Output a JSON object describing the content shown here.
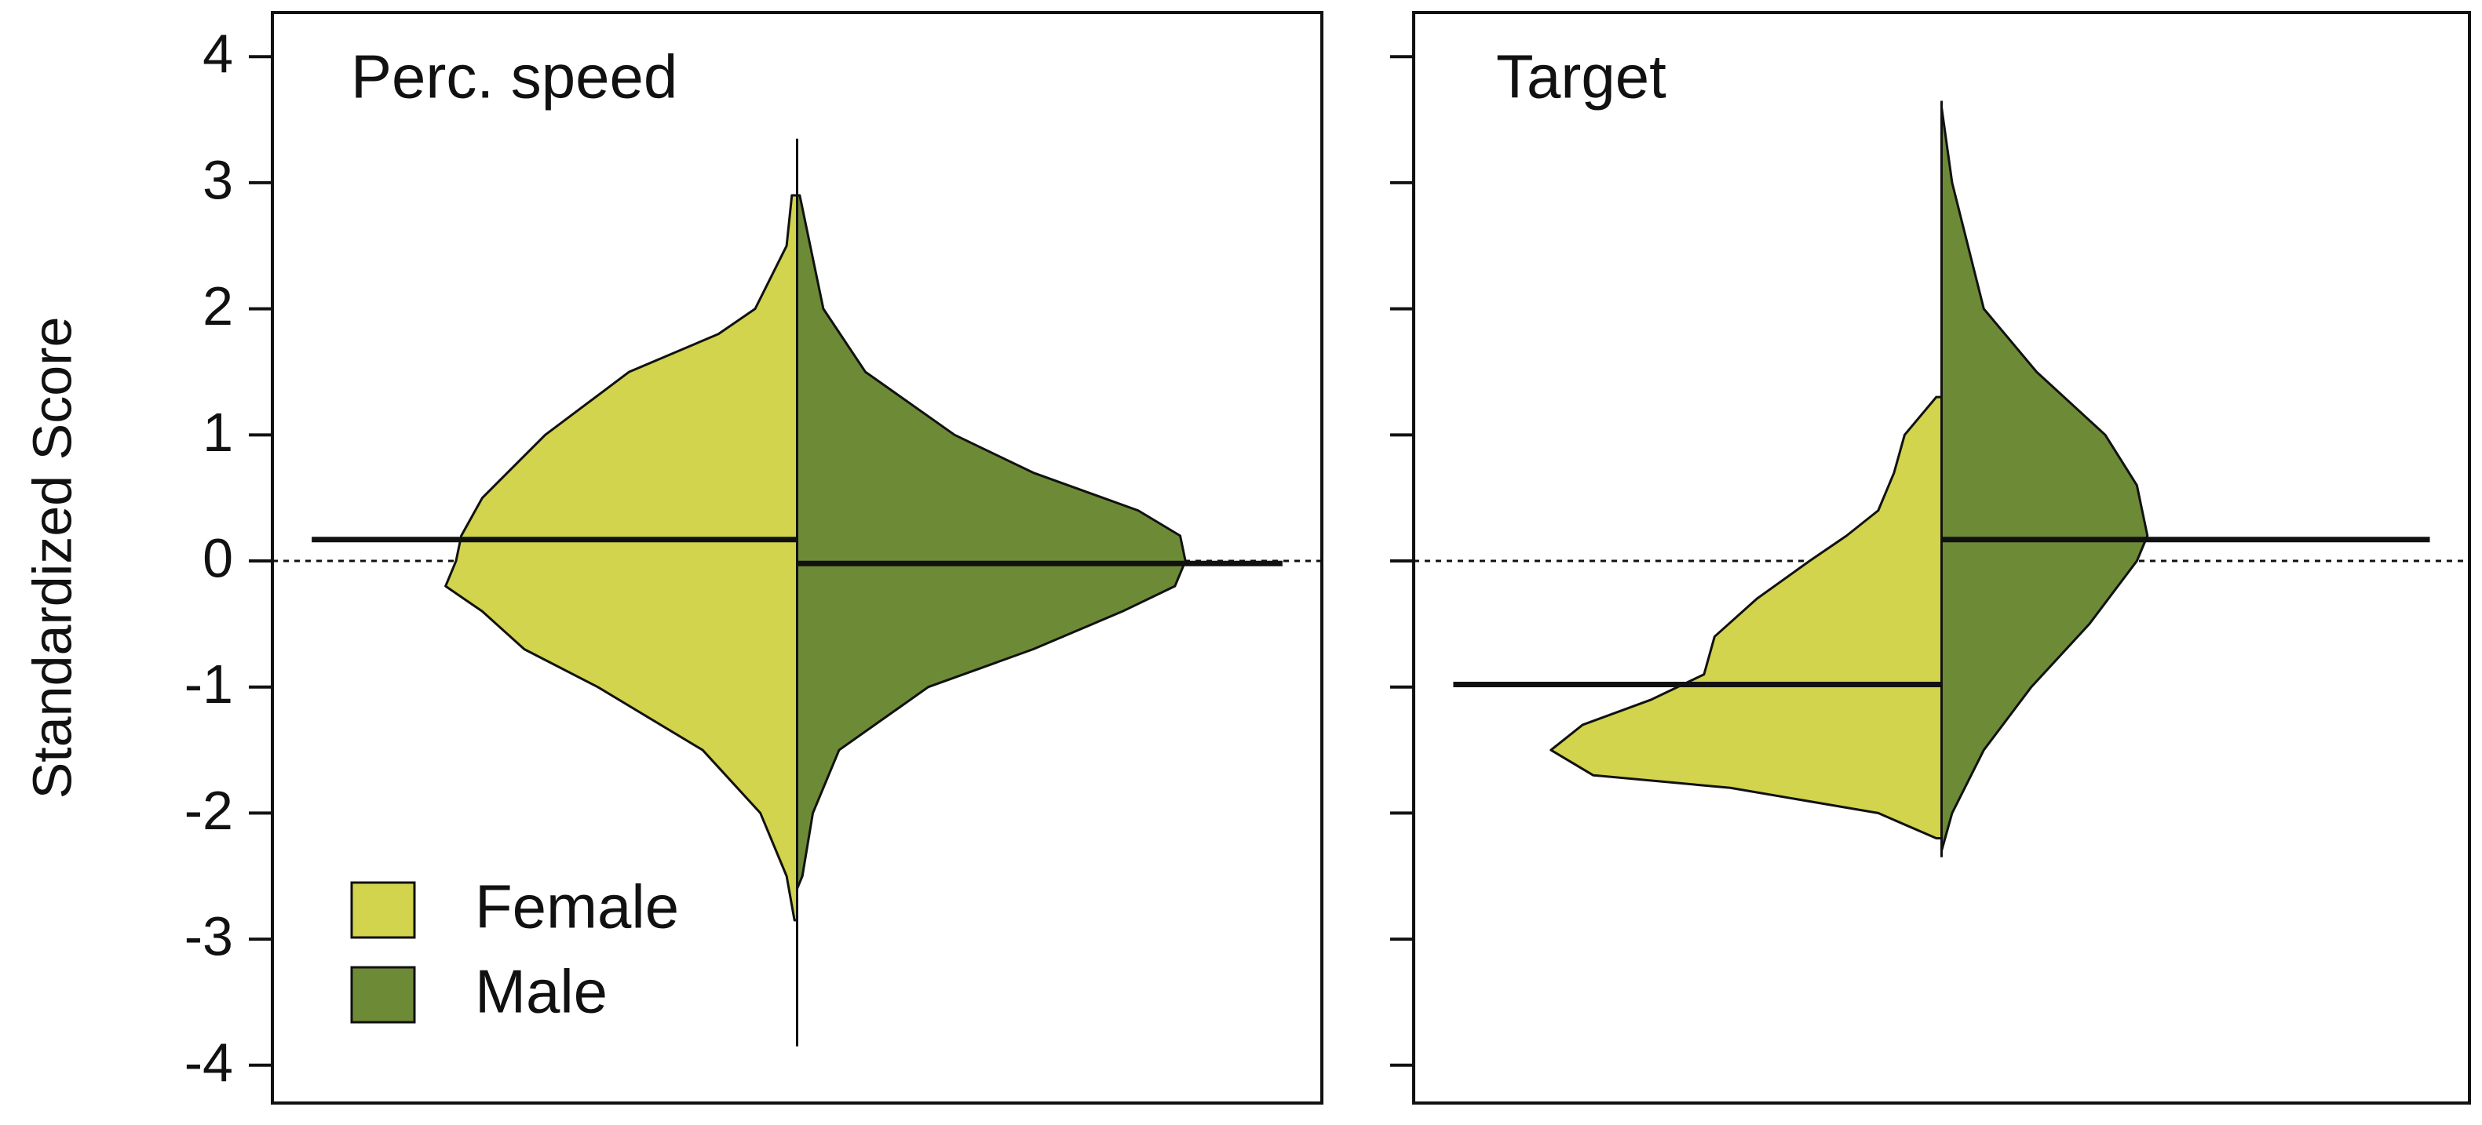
{
  "chart_data": [
    {
      "type": "violin",
      "title": "Perc. speed",
      "ylabel": "Standardized Score",
      "ylim": [
        -4.3,
        4.35
      ],
      "yticks": [
        -4,
        -3,
        -2,
        -1,
        0,
        1,
        2,
        3,
        4
      ],
      "xlim": [
        -1,
        1
      ],
      "refline": 0,
      "legend": true,
      "series": [
        {
          "name": "Female",
          "color": "#d1d44c",
          "side": "left",
          "median": 0.17,
          "range": [
            -3.85,
            3.35
          ],
          "y": [
            2.9,
            2.5,
            2.0,
            1.8,
            1.5,
            1.0,
            0.5,
            0.2,
            0.0,
            -0.2,
            -0.4,
            -0.7,
            -1.0,
            -1.5,
            -2.0,
            -2.5,
            -2.85
          ],
          "density": [
            0.01,
            0.02,
            0.08,
            0.15,
            0.32,
            0.48,
            0.6,
            0.64,
            0.65,
            0.67,
            0.6,
            0.52,
            0.38,
            0.18,
            0.07,
            0.02,
            0.005
          ]
        },
        {
          "name": "Male",
          "color": "#6d8b37",
          "side": "right",
          "median": -0.02,
          "y": [
            2.9,
            2.0,
            1.5,
            1.0,
            0.7,
            0.4,
            0.2,
            0.0,
            -0.2,
            -0.4,
            -0.7,
            -1.0,
            -1.5,
            -2.0,
            -2.5,
            -2.6
          ],
          "density": [
            0.005,
            0.05,
            0.13,
            0.3,
            0.45,
            0.65,
            0.73,
            0.74,
            0.72,
            0.62,
            0.45,
            0.25,
            0.08,
            0.03,
            0.01,
            0
          ]
        }
      ]
    },
    {
      "type": "violin",
      "title": "Target",
      "ylim": [
        -4.3,
        4.35
      ],
      "yticks": [
        -4,
        -3,
        -2,
        -1,
        0,
        1,
        2,
        3,
        4
      ],
      "xlim": [
        -1,
        1
      ],
      "refline": 0,
      "series": [
        {
          "color": "#d1d44c",
          "side": "left",
          "median": -0.98,
          "range": [
            -2.35,
            3.65
          ],
          "y": [
            1.3,
            1.0,
            0.7,
            0.4,
            0.2,
            0.0,
            -0.3,
            -0.6,
            -0.9,
            -1.1,
            -1.3,
            -1.5,
            -1.7,
            -1.8,
            -2.0,
            -2.2
          ],
          "density": [
            0.01,
            0.07,
            0.09,
            0.12,
            0.18,
            0.25,
            0.35,
            0.43,
            0.45,
            0.55,
            0.68,
            0.74,
            0.66,
            0.4,
            0.12,
            0.01
          ]
        },
        {
          "color": "#6d8b37",
          "side": "right",
          "median": 0.17,
          "y": [
            3.6,
            3.0,
            2.0,
            1.5,
            1.0,
            0.6,
            0.2,
            0.0,
            -0.5,
            -1.0,
            -1.5,
            -2.0,
            -2.3
          ],
          "density": [
            0,
            0.02,
            0.08,
            0.18,
            0.31,
            0.37,
            0.39,
            0.37,
            0.28,
            0.17,
            0.08,
            0.02,
            0
          ]
        }
      ]
    }
  ]
}
